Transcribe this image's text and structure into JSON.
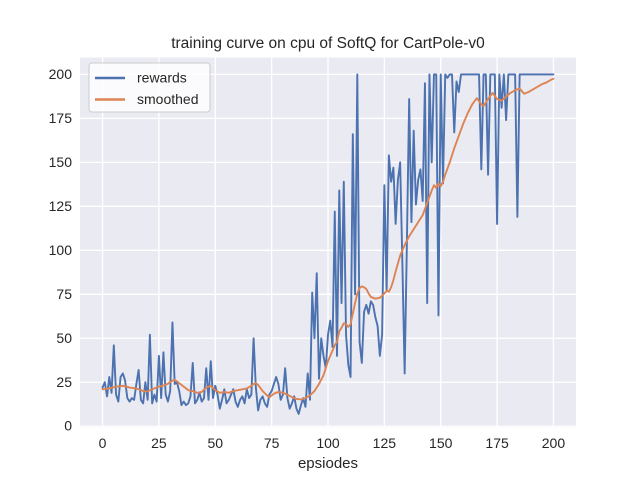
{
  "chart_data": {
    "type": "line",
    "title": "training curve on cpu of SoftQ for CartPole-v0",
    "xlabel": "epsiodes",
    "ylabel": "",
    "x_ticks": [
      0,
      25,
      50,
      75,
      100,
      125,
      150,
      175,
      200
    ],
    "y_ticks": [
      0,
      25,
      50,
      75,
      100,
      125,
      150,
      175,
      200
    ],
    "xlim": [
      -10,
      210
    ],
    "ylim": [
      -0.55,
      209.55
    ],
    "grid": true,
    "legend_position": "upper left",
    "colors": {
      "axes_background": "#EAEAF2",
      "grid": "#FFFFFF",
      "text": "#262626"
    },
    "series": [
      {
        "name": "rewards",
        "color": "#4C72B0",
        "x_start": 0,
        "x_step": 1,
        "values": [
          22,
          25,
          17,
          28,
          19,
          46,
          18,
          14,
          28,
          30,
          26,
          16,
          14,
          16,
          15,
          24,
          32,
          15,
          13,
          25,
          15,
          52,
          13,
          18,
          14,
          40,
          16,
          42,
          18,
          14,
          20,
          59,
          24,
          25,
          20,
          12,
          14,
          12,
          13,
          17,
          36,
          13,
          15,
          19,
          14,
          16,
          33,
          15,
          37,
          16,
          23,
          18,
          10,
          15,
          21,
          13,
          15,
          18,
          21,
          14,
          11,
          15,
          17,
          13,
          21,
          16,
          18,
          50,
          22,
          9,
          15,
          17,
          13,
          11,
          18,
          20,
          24,
          28,
          24,
          15,
          18,
          33,
          16,
          10,
          13,
          17,
          10,
          7,
          12,
          16,
          11,
          30,
          15,
          76,
          50,
          87,
          27,
          50,
          40,
          33,
          52,
          60,
          45,
          122,
          40,
          134,
          70,
          139,
          52,
          35,
          28,
          166,
          75,
          200,
          48,
          36,
          65,
          69,
          64,
          71,
          69,
          62,
          57,
          40,
          52,
          137,
          77,
          154,
          139,
          147,
          115,
          140,
          150,
          92,
          30,
          105,
          186,
          116,
          168,
          126,
          140,
          146,
          128,
          195,
          70,
          200,
          150,
          200,
          200,
          63,
          200,
          138,
          200,
          198,
          200,
          200,
          167,
          196,
          190,
          200,
          200,
          200,
          200,
          200,
          200,
          200,
          200,
          200,
          146,
          200,
          200,
          143,
          200,
          200,
          200,
          115,
          200,
          181,
          200,
          174,
          200,
          200,
          200,
          200,
          119,
          200,
          200,
          200,
          200,
          200,
          200,
          200,
          200,
          200,
          200,
          200,
          200,
          200,
          200,
          200,
          200
        ]
      },
      {
        "name": "smoothed",
        "color": "#DD8452",
        "x": [
          0,
          3,
          6,
          9,
          12,
          15,
          18,
          20,
          22,
          25,
          28,
          30,
          31,
          32,
          33,
          34,
          36,
          38,
          40,
          42,
          44,
          46,
          48,
          50,
          52,
          54,
          56,
          58,
          60,
          62,
          64,
          66,
          67,
          68,
          69,
          71,
          73,
          74,
          76,
          78,
          80,
          82,
          84,
          86,
          88,
          90,
          92,
          94,
          96,
          98,
          100,
          102,
          103,
          104,
          105,
          106,
          107,
          108,
          109,
          110,
          111,
          112,
          113,
          114,
          115,
          116,
          117,
          118,
          119,
          121,
          123,
          125,
          126,
          127,
          128,
          129,
          130,
          131,
          132,
          134,
          136,
          138,
          140,
          142,
          144,
          146,
          147,
          148,
          149,
          150,
          151,
          152,
          154,
          156,
          158,
          160,
          162,
          164,
          166,
          168,
          169,
          171,
          173,
          175,
          177,
          179,
          181,
          183,
          185,
          187,
          189,
          191,
          193,
          195,
          197,
          199,
          200
        ],
        "values": [
          21,
          21.5,
          22.5,
          23,
          22,
          21.5,
          20,
          19.8,
          21,
          22.5,
          23.5,
          25,
          26,
          26.3,
          25.5,
          24.5,
          22.5,
          20.5,
          20,
          19,
          19.5,
          22,
          23,
          20.5,
          19,
          19.5,
          19,
          20,
          20.5,
          21,
          21.5,
          23,
          24,
          24.5,
          23.5,
          20,
          17.5,
          16.5,
          18.5,
          19.5,
          19,
          18,
          16.5,
          15.5,
          15.2,
          16,
          17.5,
          20,
          24,
          29,
          37,
          43,
          46,
          48,
          54,
          56,
          58.5,
          58,
          56.5,
          58,
          64,
          70,
          75.5,
          78.5,
          79.5,
          79,
          78,
          75.5,
          73.5,
          72.5,
          73,
          75.5,
          77,
          76.5,
          79,
          83,
          88,
          92.5,
          97,
          103,
          108,
          112,
          116,
          120,
          127,
          134,
          137,
          135.5,
          138,
          136.5,
          139,
          143,
          150,
          158,
          165,
          172,
          178,
          183,
          186.5,
          183,
          182,
          186,
          189.5,
          186,
          185,
          187.5,
          189.5,
          191,
          192,
          189,
          190,
          191.5,
          193,
          194.5,
          195.5,
          197,
          197.5
        ]
      }
    ]
  }
}
